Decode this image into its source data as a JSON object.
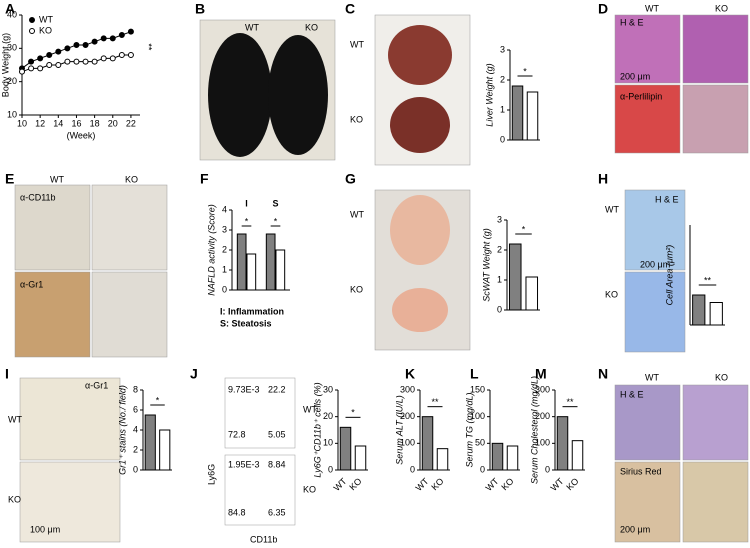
{
  "image_panels": [
    {
      "panel": "B",
      "labels": [
        "WT",
        "KO"
      ]
    },
    {
      "panel": "C",
      "labels": [
        "WT",
        "KO"
      ]
    },
    {
      "panel": "D",
      "labels": [
        "WT",
        "KO",
        "H & E",
        "200 μm",
        "α-Perlilipin"
      ]
    },
    {
      "panel": "E",
      "labels": [
        "WT",
        "KO",
        "α-CD11b",
        "α-Gr1"
      ]
    },
    {
      "panel": "G",
      "labels": [
        "WT",
        "KO"
      ]
    },
    {
      "panel": "H",
      "labels": [
        "WT",
        "KO",
        "H & E",
        "200 μm"
      ]
    },
    {
      "panel": "I",
      "labels": [
        "α-Gr1",
        "WT",
        "KO",
        "100 μm"
      ]
    },
    {
      "panel": "J",
      "labels": [
        "9.73E-3",
        "22.2",
        "72.8",
        "5.05",
        "WT",
        "1.95E-3",
        "8.84",
        "84.8",
        "6.35",
        "KO",
        "Ly6G",
        "CD11b"
      ]
    },
    {
      "panel": "N",
      "labels": [
        "WT",
        "KO",
        "H & E",
        "Sirius Red",
        "200 μm"
      ]
    }
  ],
  "chart_data": [
    {
      "panel": "A",
      "type": "line",
      "ylabel": "Body Weight (g)",
      "xlabel": "(Week)",
      "x": [
        10,
        11,
        12,
        13,
        14,
        15,
        16,
        17,
        18,
        19,
        20,
        21,
        22
      ],
      "series": [
        {
          "name": "WT",
          "color": "#000000",
          "values": [
            24,
            26,
            27,
            28,
            29,
            30,
            31,
            31,
            32,
            33,
            33,
            34,
            35
          ]
        },
        {
          "name": "KO",
          "color": "#ffffff",
          "values": [
            23,
            24,
            24,
            25,
            25,
            26,
            26,
            26,
            26,
            27,
            27,
            28,
            28
          ]
        }
      ],
      "xlim": [
        10,
        23
      ],
      "xticks": [
        10,
        12,
        14,
        16,
        18,
        20,
        22
      ],
      "ylim": [
        10,
        40
      ],
      "yticks": [
        10,
        20,
        30,
        40
      ],
      "significance": "**"
    },
    {
      "panel": null,
      "type": "bar",
      "ylabel": "Liver Weight (g)",
      "categories": [
        null,
        null
      ],
      "values": [
        1.8,
        1.6
      ],
      "colors": [
        "#808080",
        "#ffffff"
      ],
      "ylim": [
        0,
        3
      ],
      "yticks": [
        0,
        1,
        2,
        3
      ],
      "significance": "*"
    },
    {
      "panel": "F",
      "type": "bar",
      "ylabel": "NAFLD activity (Score)",
      "categories": [
        "I",
        "S"
      ],
      "series": [
        {
          "color": "#808080",
          "values": [
            2.8,
            2.8
          ]
        },
        {
          "color": "#ffffff",
          "values": [
            1.8,
            2.0
          ]
        }
      ],
      "ylim": [
        0,
        4
      ],
      "yticks": [
        0,
        1,
        2,
        3,
        4
      ],
      "significance": "*",
      "notes": [
        "I: Inflammation",
        "S: Steatosis"
      ]
    },
    {
      "panel": null,
      "type": "bar",
      "ylabel": "ScWAT Weight (g)",
      "categories": [
        null,
        null
      ],
      "values": [
        2.2,
        1.1
      ],
      "colors": [
        "#808080",
        "#ffffff"
      ],
      "ylim": [
        0,
        3
      ],
      "yticks": [
        0,
        1,
        2,
        3
      ],
      "significance": "*"
    },
    {
      "panel": null,
      "type": "bar",
      "ylabel": "Cell Area (μm²)",
      "categories": [
        null,
        null
      ],
      "values": [
        1200,
        900
      ],
      "colors": [
        "#808080",
        "#ffffff"
      ],
      "ylim": [
        0,
        4000
      ],
      "significance": "**"
    },
    {
      "panel": null,
      "type": "bar",
      "ylabel": "Gr1⁺ stains (No./ field)",
      "categories": [
        null,
        null
      ],
      "values": [
        5.5,
        4
      ],
      "colors": [
        "#808080",
        "#ffffff"
      ],
      "ylim": [
        0,
        8
      ],
      "yticks": [
        0,
        2,
        4,
        6,
        8
      ],
      "significance": "*"
    },
    {
      "panel": null,
      "type": "bar",
      "ylabel": "Ly6G⁺CD11b⁺ cells (%)",
      "categories": [
        "WT",
        "KO"
      ],
      "values": [
        16,
        9
      ],
      "colors": [
        "#808080",
        "#ffffff"
      ],
      "ylim": [
        0,
        30
      ],
      "yticks": [
        0,
        10,
        20,
        30
      ],
      "significance": "*"
    },
    {
      "panel": "K",
      "type": "bar",
      "ylabel": "Serum ALT (IU/L)",
      "categories": [
        "WT",
        "KO"
      ],
      "values": [
        200,
        80
      ],
      "colors": [
        "#808080",
        "#ffffff"
      ],
      "ylim": [
        0,
        300
      ],
      "yticks": [
        0,
        100,
        200,
        300
      ],
      "significance": "**"
    },
    {
      "panel": "L",
      "type": "bar",
      "ylabel": "Serum TG (mg/dL)",
      "categories": [
        "WT",
        "KO"
      ],
      "values": [
        50,
        45
      ],
      "colors": [
        "#808080",
        "#ffffff"
      ],
      "ylim": [
        0,
        150
      ],
      "yticks": [
        0,
        50,
        100,
        150
      ]
    },
    {
      "panel": "M",
      "type": "bar",
      "ylabel": "Serum Cholesterol (mg/dL)",
      "categories": [
        "WT",
        "KO"
      ],
      "values": [
        200,
        110
      ],
      "colors": [
        "#808080",
        "#ffffff"
      ],
      "ylim": [
        0,
        300
      ],
      "yticks": [
        0,
        100,
        200,
        300
      ],
      "significance": "**"
    }
  ]
}
